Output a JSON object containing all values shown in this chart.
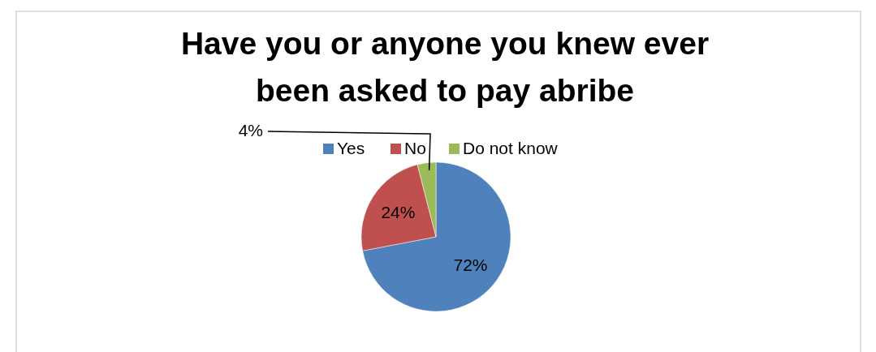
{
  "chart_data": {
    "type": "pie",
    "title": "Have you or anyone you knew ever been asked to pay abribe",
    "categories": [
      "Yes",
      "No",
      "Do not know"
    ],
    "values": [
      72,
      24,
      4
    ],
    "colors": [
      "#4f81bd",
      "#c0504d",
      "#9bbb59"
    ],
    "value_labels": [
      "72%",
      "24%",
      "4%"
    ],
    "legend": "top"
  }
}
